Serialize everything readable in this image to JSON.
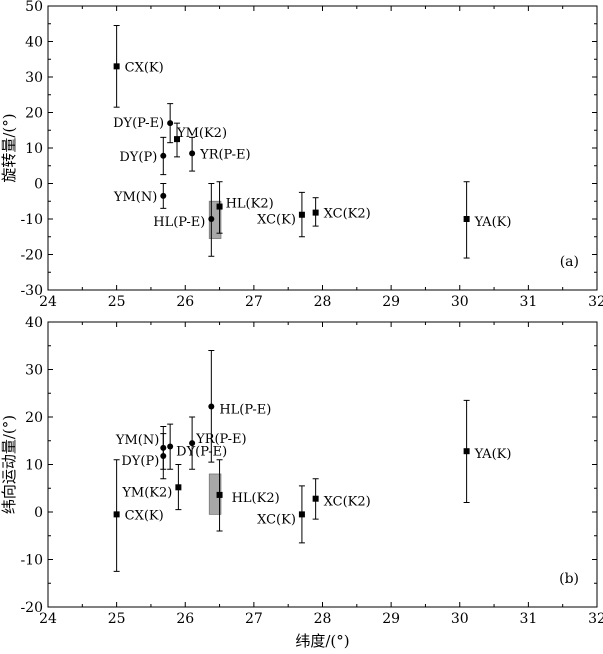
{
  "chart_data": [
    {
      "type": "scatter",
      "panel_label": "(a)",
      "ylabel": "旋转量/(°)",
      "xlabel": "",
      "xlim": [
        24,
        32
      ],
      "ylim": [
        -30,
        50
      ],
      "xticks": [
        "24",
        "25",
        "26",
        "27",
        "28",
        "29",
        "30",
        "31",
        "32"
      ],
      "yticks": [
        "-30",
        "-20",
        "-10",
        "0",
        "10",
        "20",
        "30",
        "40",
        "50"
      ],
      "grid": false,
      "points": [
        {
          "label": "CX(K)",
          "x": 25.0,
          "y": 33.0,
          "ylow": 21.5,
          "yhigh": 44.5,
          "marker": "square"
        },
        {
          "label": "DY(P-E)",
          "x": 25.78,
          "y": 17.0,
          "ylow": 11.5,
          "yhigh": 22.5,
          "marker": "circle"
        },
        {
          "label": "YM(K2)",
          "x": 25.88,
          "y": 12.5,
          "ylow": 7.5,
          "yhigh": 17.0,
          "marker": "square"
        },
        {
          "label": "DY(P)",
          "x": 25.68,
          "y": 7.8,
          "ylow": 2.5,
          "yhigh": 13.0,
          "marker": "circle"
        },
        {
          "label": "YR(P-E)",
          "x": 26.1,
          "y": 8.5,
          "ylow": 3.5,
          "yhigh": 13.0,
          "marker": "circle"
        },
        {
          "label": "YM(N)",
          "x": 25.68,
          "y": -3.5,
          "ylow": -7.0,
          "yhigh": 0.0,
          "marker": "circle"
        },
        {
          "label": "HL(P-E)",
          "x": 26.38,
          "y": -10.0,
          "ylow": -20.5,
          "yhigh": 0.0,
          "marker": "circle"
        },
        {
          "label": "HL(K2)",
          "x": 26.5,
          "y": -6.5,
          "ylow": -14.0,
          "yhigh": 0.5,
          "marker": "square"
        },
        {
          "label": "XC(K)",
          "x": 27.7,
          "y": -8.8,
          "ylow": -15.0,
          "yhigh": -2.5,
          "marker": "square"
        },
        {
          "label": "XC(K2)",
          "x": 27.9,
          "y": -8.2,
          "ylow": -12.0,
          "yhigh": -4.0,
          "marker": "square"
        },
        {
          "label": "YA(K)",
          "x": 30.1,
          "y": -10.0,
          "ylow": -21.0,
          "yhigh": 0.5,
          "marker": "square"
        }
      ],
      "shaded_box": {
        "x0": 26.35,
        "x1": 26.52,
        "y0": -15.5,
        "y1": -5.0
      }
    },
    {
      "type": "scatter",
      "panel_label": "(b)",
      "ylabel": "纬向运动量/(°)",
      "xlabel": "纬度/(°)",
      "xlim": [
        24,
        32
      ],
      "ylim": [
        -20,
        40
      ],
      "xticks": [
        "24",
        "25",
        "26",
        "27",
        "28",
        "29",
        "30",
        "31",
        "32"
      ],
      "yticks": [
        "-20",
        "-10",
        "0",
        "10",
        "20",
        "30",
        "40"
      ],
      "grid": false,
      "points": [
        {
          "label": "CX(K)",
          "x": 25.0,
          "y": -0.5,
          "ylow": -12.5,
          "yhigh": 11.0,
          "marker": "square"
        },
        {
          "label": "YM(N)",
          "x": 25.68,
          "y": 13.5,
          "ylow": 9.0,
          "yhigh": 18.0,
          "marker": "circle"
        },
        {
          "label": "DY(P-E)",
          "x": 25.78,
          "y": 13.8,
          "ylow": 9.0,
          "yhigh": 18.5,
          "marker": "circle"
        },
        {
          "label": "DY(P)",
          "x": 25.68,
          "y": 11.8,
          "ylow": 7.0,
          "yhigh": 16.5,
          "marker": "circle"
        },
        {
          "label": "YM(K2)",
          "x": 25.9,
          "y": 5.2,
          "ylow": 0.5,
          "yhigh": 10.0,
          "marker": "square"
        },
        {
          "label": "YR(P-E)",
          "x": 26.1,
          "y": 14.5,
          "ylow": 9.0,
          "yhigh": 20.0,
          "marker": "circle"
        },
        {
          "label": "HL(P-E)",
          "x": 26.38,
          "y": 22.2,
          "ylow": 10.5,
          "yhigh": 34.0,
          "marker": "circle"
        },
        {
          "label": "HL(K2)",
          "x": 26.5,
          "y": 3.6,
          "ylow": -4.0,
          "yhigh": 11.0,
          "marker": "square"
        },
        {
          "label": "XC(K)",
          "x": 27.7,
          "y": -0.5,
          "ylow": -6.5,
          "yhigh": 5.5,
          "marker": "square"
        },
        {
          "label": "XC(K2)",
          "x": 27.9,
          "y": 2.8,
          "ylow": -1.5,
          "yhigh": 7.0,
          "marker": "square"
        },
        {
          "label": "YA(K)",
          "x": 30.1,
          "y": 12.8,
          "ylow": 2.0,
          "yhigh": 23.5,
          "marker": "square"
        }
      ],
      "shaded_box": {
        "x0": 26.35,
        "x1": 26.52,
        "y0": -0.5,
        "y1": 8.0
      }
    }
  ]
}
